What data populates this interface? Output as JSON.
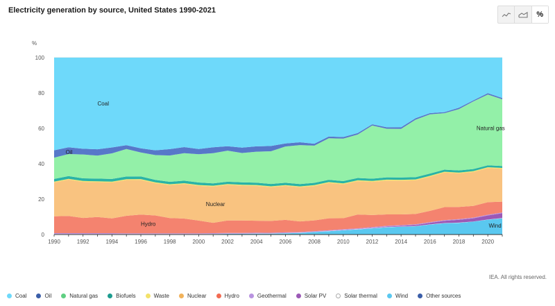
{
  "header": {
    "title": "Electricity generation by source, United States 1990-2021",
    "view_buttons": [
      {
        "icon": "line-chart-icon",
        "label": ""
      },
      {
        "icon": "area-chart-icon",
        "label": ""
      },
      {
        "icon": "percent-icon",
        "label": "%"
      }
    ]
  },
  "credit": "IEA. All rights reserved.",
  "chart_data": {
    "type": "area",
    "stacked": true,
    "ylabel": "%",
    "ylim": [
      0,
      100
    ],
    "yticks": [
      0,
      20,
      40,
      60,
      80,
      100
    ],
    "x": [
      1990,
      1991,
      1992,
      1993,
      1994,
      1995,
      1996,
      1997,
      1998,
      1999,
      2000,
      2001,
      2002,
      2003,
      2004,
      2005,
      2006,
      2007,
      2008,
      2009,
      2010,
      2011,
      2012,
      2013,
      2014,
      2015,
      2016,
      2017,
      2018,
      2019,
      2020,
      2021
    ],
    "xticks": [
      "1990",
      "1992",
      "1994",
      "1996",
      "1998",
      "2000",
      "2002",
      "2004",
      "2006",
      "2008",
      "2010",
      "2012",
      "2014",
      "2016",
      "2018",
      "2020"
    ],
    "grid": true,
    "legend_position": "bottom",
    "series": [
      {
        "name": "Other sources",
        "color": "#3b5ea8",
        "values": [
          0.1,
          0.1,
          0.1,
          0.1,
          0.1,
          0.1,
          0.1,
          0.1,
          0.1,
          0.1,
          0.1,
          0.1,
          0.1,
          0.1,
          0.1,
          0.1,
          0.1,
          0.1,
          0.1,
          0.1,
          0.1,
          0.1,
          0.1,
          0.1,
          0.1,
          0.1,
          0.1,
          0.1,
          0.1,
          0.1,
          0.1,
          0.1
        ]
      },
      {
        "name": "Wind",
        "color": "#5ac8f0",
        "values": [
          0.1,
          0.1,
          0.1,
          0.1,
          0.1,
          0.1,
          0.1,
          0.1,
          0.1,
          0.1,
          0.1,
          0.2,
          0.3,
          0.3,
          0.4,
          0.4,
          0.6,
          0.8,
          1.3,
          1.8,
          2.3,
          2.8,
          3.4,
          4.0,
          4.3,
          4.6,
          5.6,
          6.3,
          6.5,
          7.2,
          8.3,
          9.1
        ]
      },
      {
        "name": "Solar thermal",
        "color": "#ffffff",
        "values": [
          0.1,
          0.1,
          0.1,
          0.1,
          0.1,
          0.1,
          0.1,
          0.1,
          0.1,
          0.1,
          0.1,
          0.1,
          0.1,
          0.1,
          0.1,
          0.1,
          0.1,
          0.1,
          0.1,
          0.1,
          0.1,
          0.1,
          0.1,
          0.1,
          0.1,
          0.1,
          0.1,
          0.1,
          0.1,
          0.1,
          0.1,
          0.1
        ]
      },
      {
        "name": "Solar PV",
        "color": "#9b59b6",
        "values": [
          0,
          0,
          0,
          0,
          0,
          0,
          0,
          0,
          0,
          0,
          0,
          0,
          0,
          0,
          0,
          0,
          0,
          0,
          0,
          0,
          0.1,
          0.1,
          0.2,
          0.3,
          0.4,
          0.6,
          0.9,
          1.3,
          1.6,
          1.8,
          2.3,
          2.8
        ]
      },
      {
        "name": "Geothermal",
        "color": "#b993e0",
        "values": [
          0.5,
          0.5,
          0.5,
          0.5,
          0.5,
          0.4,
          0.4,
          0.4,
          0.4,
          0.4,
          0.4,
          0.4,
          0.4,
          0.4,
          0.4,
          0.4,
          0.4,
          0.4,
          0.4,
          0.4,
          0.4,
          0.4,
          0.4,
          0.4,
          0.4,
          0.4,
          0.4,
          0.4,
          0.4,
          0.4,
          0.4,
          0.4
        ]
      },
      {
        "name": "Hydro",
        "color": "#f4836f",
        "values": [
          9.5,
          9.7,
          8.6,
          9.1,
          8.3,
          9.9,
          10.5,
          10.1,
          8.6,
          8.3,
          7.2,
          5.8,
          7.0,
          7.0,
          6.8,
          6.7,
          7.1,
          6.0,
          6.1,
          6.8,
          6.2,
          7.8,
          6.8,
          6.5,
          6.1,
          5.9,
          6.4,
          7.4,
          6.9,
          6.6,
          7.1,
          6.1
        ]
      },
      {
        "name": "Nuclear",
        "color": "#f9c380",
        "values": [
          19.1,
          20.5,
          20.4,
          19.7,
          20.3,
          20.2,
          19.5,
          18.2,
          18.5,
          19.4,
          19.6,
          20.4,
          20.1,
          19.6,
          19.6,
          19.1,
          19.2,
          19.3,
          19.4,
          20.0,
          19.2,
          18.8,
          18.7,
          19.2,
          19.1,
          19.2,
          19.5,
          19.6,
          18.9,
          19.2,
          19.3,
          18.6
        ]
      },
      {
        "name": "Waste",
        "color": "#f3e26a",
        "values": [
          0.5,
          0.5,
          0.5,
          0.5,
          0.5,
          0.5,
          0.5,
          0.5,
          0.5,
          0.5,
          0.5,
          0.5,
          0.5,
          0.5,
          0.5,
          0.5,
          0.5,
          0.5,
          0.5,
          0.5,
          0.5,
          0.5,
          0.5,
          0.5,
          0.5,
          0.5,
          0.5,
          0.5,
          0.5,
          0.5,
          0.5,
          0.5
        ]
      },
      {
        "name": "Biofuels",
        "color": "#2ab3a6",
        "values": [
          1.5,
          1.5,
          1.5,
          1.5,
          1.5,
          1.5,
          1.5,
          1.4,
          1.4,
          1.4,
          1.4,
          1.3,
          1.3,
          1.3,
          1.3,
          1.3,
          1.3,
          1.3,
          1.3,
          1.3,
          1.3,
          1.3,
          1.3,
          1.3,
          1.3,
          1.3,
          1.3,
          1.2,
          1.2,
          1.2,
          1.1,
          1.1
        ]
      },
      {
        "name": "Natural gas",
        "color": "#93f0a8",
        "values": [
          12.0,
          12.5,
          13.5,
          13.0,
          14.5,
          15.5,
          13.5,
          14.0,
          14.8,
          15.5,
          16.0,
          17.0,
          17.5,
          16.5,
          17.5,
          18.5,
          20.5,
          22.0,
          21.0,
          23.5,
          24.0,
          24.5,
          30.0,
          27.6,
          27.5,
          32.8,
          33.8,
          32.1,
          34.6,
          38.3,
          40.1,
          37.7
        ]
      },
      {
        "name": "Oil",
        "color": "#5778c9",
        "values": [
          4.2,
          3.8,
          3.2,
          3.6,
          3.3,
          2.2,
          2.3,
          2.7,
          3.6,
          3.4,
          2.9,
          3.3,
          2.5,
          3.0,
          3.0,
          3.0,
          1.7,
          1.6,
          1.1,
          1.0,
          0.9,
          0.8,
          0.7,
          0.8,
          0.9,
          0.8,
          0.7,
          0.6,
          0.8,
          0.6,
          0.8,
          0.7
        ]
      },
      {
        "name": "Coal",
        "color": "#6ed9fa",
        "values": [
          52.4,
          50.7,
          51.6,
          51.8,
          50.8,
          49.5,
          51.1,
          52.4,
          51.5,
          50.4,
          51.7,
          50.5,
          50.0,
          50.6,
          50.0,
          50.0,
          48.6,
          47.8,
          48.6,
          44.7,
          44.9,
          42.6,
          37.6,
          39.5,
          39.5,
          34.6,
          31.7,
          31.0,
          28.3,
          24.2,
          20.1,
          22.9
        ]
      }
    ],
    "annotations": [
      {
        "text": "Coal",
        "x": 1993,
        "y": 73
      },
      {
        "text": "Oil",
        "x": 1990.8,
        "y": 45.5
      },
      {
        "text": "Natural gas",
        "x": 2020.2,
        "y": 59
      },
      {
        "text": "Nuclear",
        "x": 2000.5,
        "y": 16
      },
      {
        "text": "Hydro",
        "x": 1996,
        "y": 5
      },
      {
        "text": "Wind",
        "x": 2020.5,
        "y": 4
      }
    ]
  },
  "legend": [
    {
      "name": "Coal",
      "color": "#6ed9fa",
      "icon": "legend-dot-icon"
    },
    {
      "name": "Oil",
      "color": "#3b5ea8",
      "icon": "legend-dot-icon"
    },
    {
      "name": "Natural gas",
      "color": "#5fcf82",
      "icon": "legend-dot-icon"
    },
    {
      "name": "Biofuels",
      "color": "#1d9c8f",
      "icon": "legend-dot-icon"
    },
    {
      "name": "Waste",
      "color": "#f3e26a",
      "icon": "legend-dot-icon"
    },
    {
      "name": "Nuclear",
      "color": "#f1b25a",
      "icon": "legend-dot-icon"
    },
    {
      "name": "Hydro",
      "color": "#f26b52",
      "icon": "legend-dot-icon"
    },
    {
      "name": "Geothermal",
      "color": "#b993e0",
      "icon": "legend-dot-icon"
    },
    {
      "name": "Solar PV",
      "color": "#9b59b6",
      "icon": "legend-dot-icon"
    },
    {
      "name": "Solar thermal",
      "color": "#ffffff",
      "icon": "legend-dot-hollow-icon"
    },
    {
      "name": "Wind",
      "color": "#5ac8f0",
      "icon": "legend-dot-icon"
    },
    {
      "name": "Other sources",
      "color": "#3b5ea8",
      "icon": "legend-dot-icon"
    }
  ]
}
